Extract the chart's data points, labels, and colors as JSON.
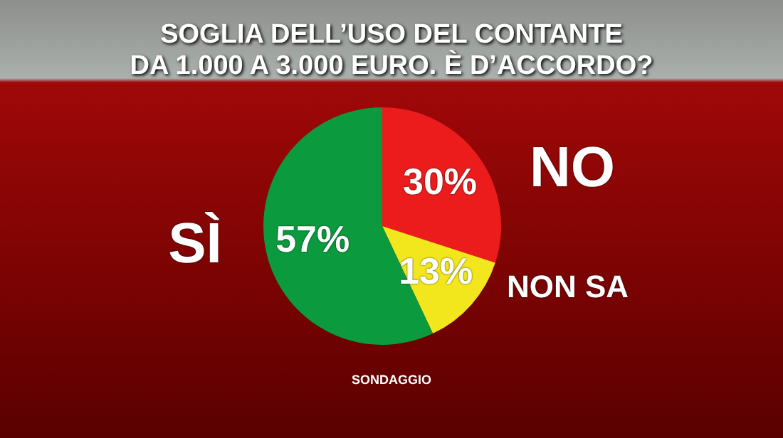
{
  "chart_data": {
    "type": "pie",
    "title": "SOGLIA DELL’USO DEL CONTANTE\nDA 1.000 A 3.000 EURO. È D’ACCORDO?",
    "categories": [
      "NO",
      "NON SA",
      "SÌ"
    ],
    "values": [
      30,
      13,
      57
    ],
    "colors": [
      "#ec1c1c",
      "#f2e61c",
      "#0b9a3e"
    ],
    "value_labels": [
      "30%",
      "13%",
      "57%"
    ],
    "legend": false,
    "annotations": [
      "SONDAGGIO"
    ]
  }
}
